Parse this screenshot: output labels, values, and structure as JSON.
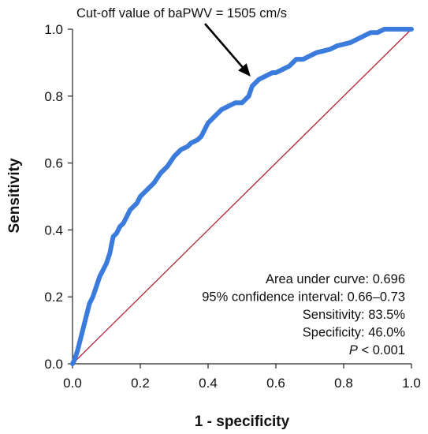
{
  "chart_data": {
    "type": "line",
    "xlabel": "1 - specificity",
    "ylabel": "Sensitivity",
    "xlim": [
      0,
      1
    ],
    "ylim": [
      0,
      1
    ],
    "x_ticks": [
      "0.0",
      "0.2",
      "0.4",
      "0.6",
      "0.8",
      "1.0"
    ],
    "y_ticks": [
      "0.0",
      "0.2",
      "0.4",
      "0.6",
      "0.8",
      "1.0"
    ],
    "grid": false,
    "legend": null,
    "annotation": {
      "text": "Cut-off value of baPWV = 1505 cm/s",
      "point": {
        "x": 0.53,
        "y": 0.835
      }
    },
    "stats": [
      {
        "text": "Area under curve: 0.696"
      },
      {
        "text": "95% confidence interval: 0.66–0.73"
      },
      {
        "text": "Sensitivity: 83.5%"
      },
      {
        "text": "Specificity: 46.0%"
      },
      {
        "prefix": "P",
        "text": " < 0.001"
      }
    ],
    "series": [
      {
        "color": "#3a7bdc",
        "x": [
          0.0,
          0.005,
          0.01,
          0.015,
          0.02,
          0.025,
          0.03,
          0.035,
          0.04,
          0.05,
          0.06,
          0.07,
          0.08,
          0.09,
          0.1,
          0.11,
          0.12,
          0.13,
          0.14,
          0.15,
          0.16,
          0.17,
          0.18,
          0.19,
          0.2,
          0.21,
          0.22,
          0.24,
          0.26,
          0.28,
          0.3,
          0.31,
          0.32,
          0.34,
          0.35,
          0.36,
          0.37,
          0.38,
          0.39,
          0.4,
          0.42,
          0.43,
          0.44,
          0.46,
          0.48,
          0.5,
          0.52,
          0.53,
          0.54,
          0.55,
          0.57,
          0.59,
          0.6,
          0.62,
          0.64,
          0.65,
          0.66,
          0.68,
          0.7,
          0.72,
          0.74,
          0.76,
          0.78,
          0.8,
          0.82,
          0.84,
          0.86,
          0.88,
          0.9,
          0.92,
          0.94,
          0.96,
          0.98,
          1.0
        ],
        "y": [
          0.0,
          0.01,
          0.025,
          0.04,
          0.06,
          0.08,
          0.1,
          0.12,
          0.14,
          0.18,
          0.2,
          0.23,
          0.26,
          0.28,
          0.3,
          0.33,
          0.38,
          0.39,
          0.41,
          0.42,
          0.44,
          0.46,
          0.47,
          0.48,
          0.5,
          0.51,
          0.52,
          0.54,
          0.57,
          0.59,
          0.62,
          0.63,
          0.64,
          0.65,
          0.66,
          0.665,
          0.67,
          0.68,
          0.7,
          0.72,
          0.74,
          0.75,
          0.76,
          0.77,
          0.78,
          0.78,
          0.8,
          0.83,
          0.84,
          0.85,
          0.86,
          0.87,
          0.87,
          0.88,
          0.89,
          0.9,
          0.91,
          0.91,
          0.92,
          0.93,
          0.935,
          0.94,
          0.95,
          0.955,
          0.96,
          0.97,
          0.98,
          0.99,
          0.99,
          1.0,
          1.0,
          1.0,
          1.0,
          1.0
        ]
      },
      {
        "color": "#b22234",
        "x": [
          0,
          1
        ],
        "y": [
          0,
          1
        ]
      }
    ]
  }
}
